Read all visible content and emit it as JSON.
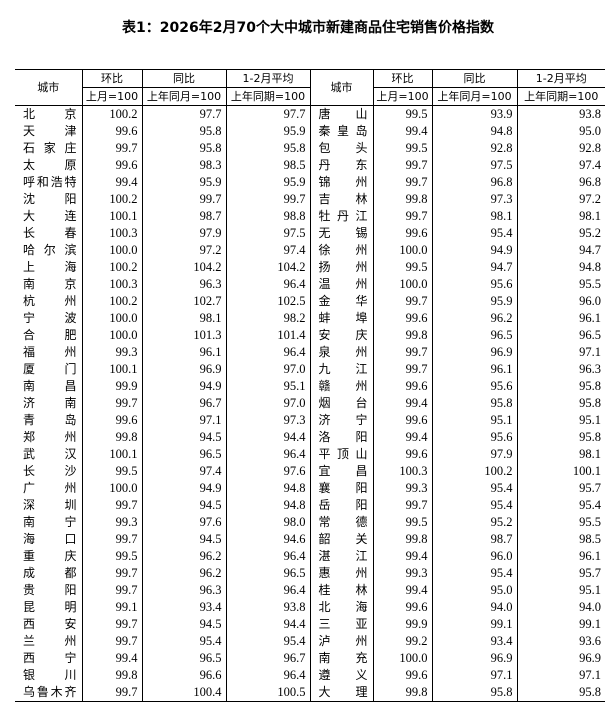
{
  "title": "表1：2026年2月70个大中城市新建商品住宅销售价格指数",
  "header": {
    "city": "城市",
    "mom": "环比",
    "mom_base": "上月=100",
    "yoy": "同比",
    "yoy_base": "上年同月=100",
    "avg": "1-2月平均",
    "avg_base": "上年同期=100"
  },
  "left_rows": [
    {
      "city": "北京",
      "mom": "100.2",
      "yoy": "97.7",
      "avg": "97.7"
    },
    {
      "city": "天津",
      "mom": "99.6",
      "yoy": "95.8",
      "avg": "95.9"
    },
    {
      "city": "石家庄",
      "mom": "99.7",
      "yoy": "95.8",
      "avg": "95.8"
    },
    {
      "city": "太原",
      "mom": "99.6",
      "yoy": "98.3",
      "avg": "98.5"
    },
    {
      "city": "呼和浩特",
      "mom": "99.4",
      "yoy": "95.9",
      "avg": "95.9"
    },
    {
      "city": "沈阳",
      "mom": "100.2",
      "yoy": "99.7",
      "avg": "99.7"
    },
    {
      "city": "大连",
      "mom": "100.1",
      "yoy": "98.7",
      "avg": "98.8"
    },
    {
      "city": "长春",
      "mom": "100.3",
      "yoy": "97.9",
      "avg": "97.5"
    },
    {
      "city": "哈尔滨",
      "mom": "100.0",
      "yoy": "97.2",
      "avg": "97.4"
    },
    {
      "city": "上海",
      "mom": "100.2",
      "yoy": "104.2",
      "avg": "104.2"
    },
    {
      "city": "南京",
      "mom": "100.3",
      "yoy": "96.3",
      "avg": "96.4"
    },
    {
      "city": "杭州",
      "mom": "100.2",
      "yoy": "102.7",
      "avg": "102.5"
    },
    {
      "city": "宁波",
      "mom": "100.0",
      "yoy": "98.1",
      "avg": "98.2"
    },
    {
      "city": "合肥",
      "mom": "100.0",
      "yoy": "101.3",
      "avg": "101.4"
    },
    {
      "city": "福州",
      "mom": "99.3",
      "yoy": "96.1",
      "avg": "96.4"
    },
    {
      "city": "厦门",
      "mom": "100.1",
      "yoy": "96.9",
      "avg": "97.0"
    },
    {
      "city": "南昌",
      "mom": "99.9",
      "yoy": "94.9",
      "avg": "95.1"
    },
    {
      "city": "济南",
      "mom": "99.7",
      "yoy": "96.7",
      "avg": "97.0"
    },
    {
      "city": "青岛",
      "mom": "99.6",
      "yoy": "97.1",
      "avg": "97.3"
    },
    {
      "city": "郑州",
      "mom": "99.8",
      "yoy": "94.5",
      "avg": "94.4"
    },
    {
      "city": "武汉",
      "mom": "100.1",
      "yoy": "96.5",
      "avg": "96.4"
    },
    {
      "city": "长沙",
      "mom": "99.5",
      "yoy": "97.4",
      "avg": "97.6"
    },
    {
      "city": "广州",
      "mom": "100.0",
      "yoy": "94.9",
      "avg": "94.8"
    },
    {
      "city": "深圳",
      "mom": "99.7",
      "yoy": "94.5",
      "avg": "94.8"
    },
    {
      "city": "南宁",
      "mom": "99.3",
      "yoy": "97.6",
      "avg": "98.0"
    },
    {
      "city": "海口",
      "mom": "99.7",
      "yoy": "94.5",
      "avg": "94.6"
    },
    {
      "city": "重庆",
      "mom": "99.5",
      "yoy": "96.2",
      "avg": "96.4"
    },
    {
      "city": "成都",
      "mom": "99.7",
      "yoy": "96.2",
      "avg": "96.5"
    },
    {
      "city": "贵阳",
      "mom": "99.7",
      "yoy": "96.3",
      "avg": "96.4"
    },
    {
      "city": "昆明",
      "mom": "99.1",
      "yoy": "93.4",
      "avg": "93.8"
    },
    {
      "city": "西安",
      "mom": "99.7",
      "yoy": "94.5",
      "avg": "94.4"
    },
    {
      "city": "兰州",
      "mom": "99.7",
      "yoy": "95.4",
      "avg": "95.4"
    },
    {
      "city": "西宁",
      "mom": "99.4",
      "yoy": "96.5",
      "avg": "96.7"
    },
    {
      "city": "银川",
      "mom": "99.8",
      "yoy": "96.6",
      "avg": "96.4"
    },
    {
      "city": "乌鲁木齐",
      "mom": "99.7",
      "yoy": "100.4",
      "avg": "100.5"
    }
  ],
  "right_rows": [
    {
      "city": "唐山",
      "mom": "99.5",
      "yoy": "93.9",
      "avg": "93.8"
    },
    {
      "city": "秦皇岛",
      "mom": "99.4",
      "yoy": "94.8",
      "avg": "95.0"
    },
    {
      "city": "包头",
      "mom": "99.5",
      "yoy": "92.8",
      "avg": "92.8"
    },
    {
      "city": "丹东",
      "mom": "99.7",
      "yoy": "97.5",
      "avg": "97.4"
    },
    {
      "city": "锦州",
      "mom": "99.7",
      "yoy": "96.8",
      "avg": "96.8"
    },
    {
      "city": "吉林",
      "mom": "99.8",
      "yoy": "97.3",
      "avg": "97.2"
    },
    {
      "city": "牡丹江",
      "mom": "99.7",
      "yoy": "98.1",
      "avg": "98.1"
    },
    {
      "city": "无锡",
      "mom": "99.6",
      "yoy": "95.4",
      "avg": "95.2"
    },
    {
      "city": "徐州",
      "mom": "100.0",
      "yoy": "94.9",
      "avg": "94.7"
    },
    {
      "city": "扬州",
      "mom": "99.5",
      "yoy": "94.7",
      "avg": "94.8"
    },
    {
      "city": "温州",
      "mom": "100.0",
      "yoy": "95.6",
      "avg": "95.5"
    },
    {
      "city": "金华",
      "mom": "99.7",
      "yoy": "95.9",
      "avg": "96.0"
    },
    {
      "city": "蚌埠",
      "mom": "99.6",
      "yoy": "96.2",
      "avg": "96.1"
    },
    {
      "city": "安庆",
      "mom": "99.8",
      "yoy": "96.5",
      "avg": "96.5"
    },
    {
      "city": "泉州",
      "mom": "99.7",
      "yoy": "96.9",
      "avg": "97.1"
    },
    {
      "city": "九江",
      "mom": "99.7",
      "yoy": "96.1",
      "avg": "96.3"
    },
    {
      "city": "赣州",
      "mom": "99.6",
      "yoy": "95.6",
      "avg": "95.8"
    },
    {
      "city": "烟台",
      "mom": "99.4",
      "yoy": "95.8",
      "avg": "95.8"
    },
    {
      "city": "济宁",
      "mom": "99.6",
      "yoy": "95.1",
      "avg": "95.1"
    },
    {
      "city": "洛阳",
      "mom": "99.4",
      "yoy": "95.6",
      "avg": "95.8"
    },
    {
      "city": "平顶山",
      "mom": "99.6",
      "yoy": "97.9",
      "avg": "98.1"
    },
    {
      "city": "宜昌",
      "mom": "100.3",
      "yoy": "100.2",
      "avg": "100.1"
    },
    {
      "city": "襄阳",
      "mom": "99.3",
      "yoy": "95.4",
      "avg": "95.7"
    },
    {
      "city": "岳阳",
      "mom": "99.7",
      "yoy": "95.4",
      "avg": "95.4"
    },
    {
      "city": "常德",
      "mom": "99.5",
      "yoy": "95.2",
      "avg": "95.5"
    },
    {
      "city": "韶关",
      "mom": "99.8",
      "yoy": "98.7",
      "avg": "98.5"
    },
    {
      "city": "湛江",
      "mom": "99.4",
      "yoy": "96.0",
      "avg": "96.1"
    },
    {
      "city": "惠州",
      "mom": "99.3",
      "yoy": "95.4",
      "avg": "95.7"
    },
    {
      "city": "桂林",
      "mom": "99.4",
      "yoy": "95.0",
      "avg": "95.1"
    },
    {
      "city": "北海",
      "mom": "99.6",
      "yoy": "94.0",
      "avg": "94.0"
    },
    {
      "city": "三亚",
      "mom": "99.9",
      "yoy": "99.1",
      "avg": "99.1"
    },
    {
      "city": "泸州",
      "mom": "99.2",
      "yoy": "93.4",
      "avg": "93.6"
    },
    {
      "city": "南充",
      "mom": "100.0",
      "yoy": "96.9",
      "avg": "96.9"
    },
    {
      "city": "遵义",
      "mom": "99.6",
      "yoy": "97.1",
      "avg": "97.1"
    },
    {
      "city": "大理",
      "mom": "99.8",
      "yoy": "95.8",
      "avg": "95.8"
    }
  ]
}
